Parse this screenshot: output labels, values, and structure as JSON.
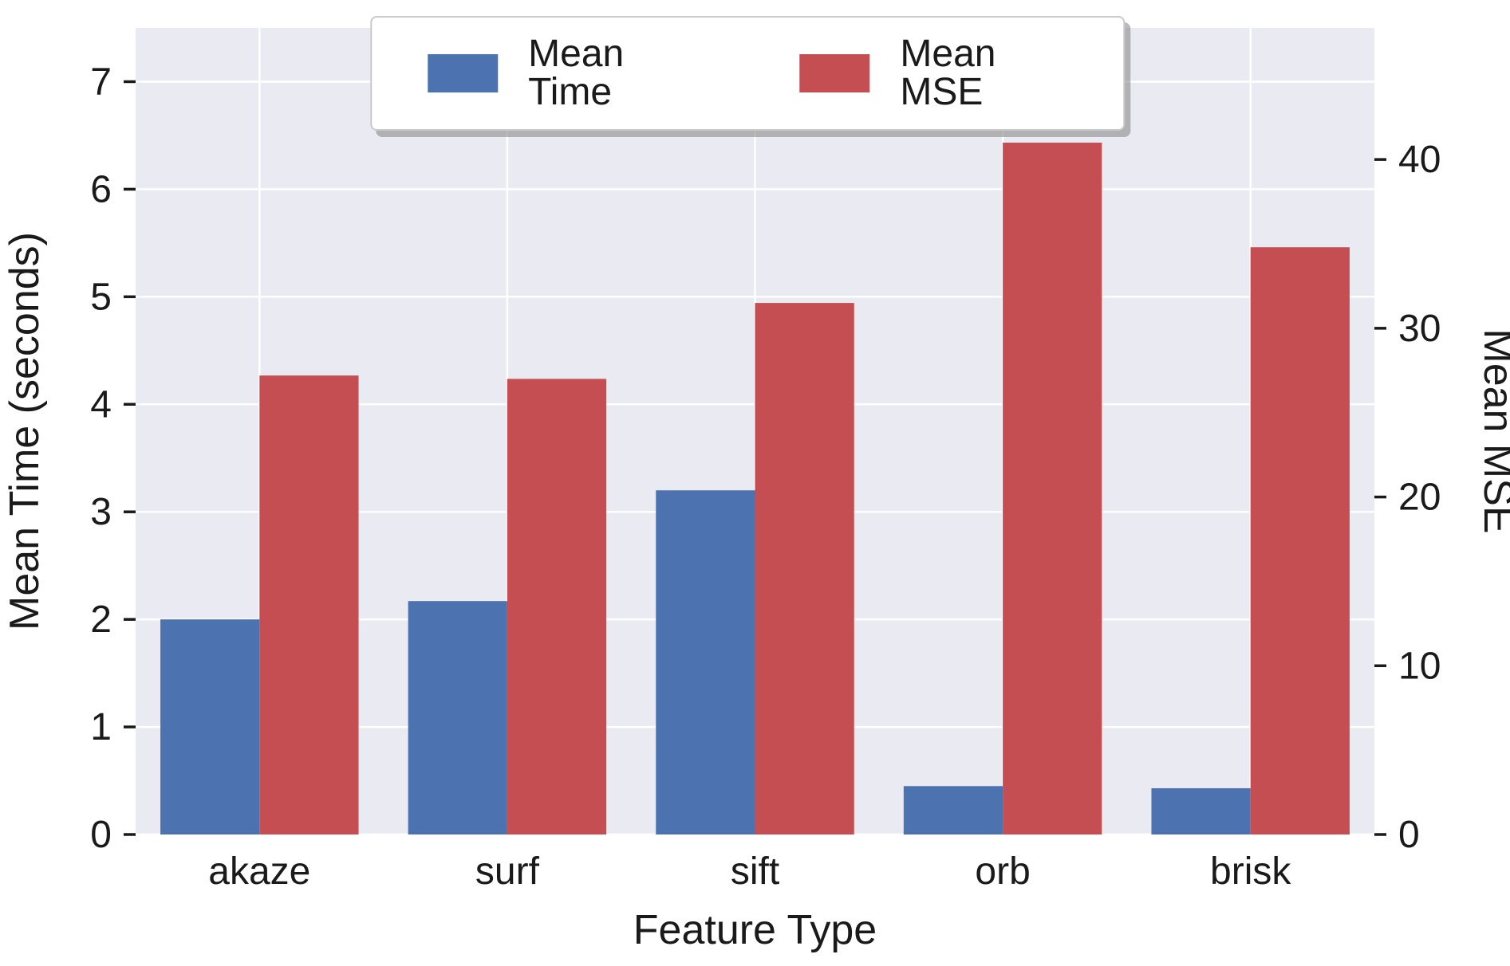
{
  "figure": {
    "background": "#ffffff",
    "plot_background": "#eaeaf2",
    "grid_color": "#ffffff",
    "text_color": "#1a1a1a"
  },
  "legend": {
    "items": [
      {
        "label": "Mean Time",
        "color": "#4c72b0"
      },
      {
        "label": "Mean MSE",
        "color": "#c44e52"
      }
    ]
  },
  "chart_data": {
    "type": "bar",
    "categories": [
      "akaze",
      "surf",
      "sift",
      "orb",
      "brisk"
    ],
    "series": [
      {
        "name": "Mean Time",
        "axis": "left",
        "color": "#4c72b0",
        "values": [
          2.0,
          2.17,
          3.2,
          0.45,
          0.43
        ]
      },
      {
        "name": "Mean MSE",
        "axis": "right",
        "color": "#c44e52",
        "values": [
          27.2,
          27.0,
          31.5,
          41.0,
          34.8
        ]
      }
    ],
    "title": "",
    "xlabel": "Feature Type",
    "ylabel_left": "Mean Time (seconds)",
    "ylabel_right": "Mean MSE",
    "ylim_left": [
      0,
      7.5
    ],
    "ylim_right": [
      0,
      47.8
    ],
    "yticks_left": [
      0,
      1,
      2,
      3,
      4,
      5,
      6,
      7
    ],
    "yticks_right": [
      0,
      10,
      20,
      30,
      40
    ],
    "grid": true,
    "legend_position": "top-center"
  }
}
